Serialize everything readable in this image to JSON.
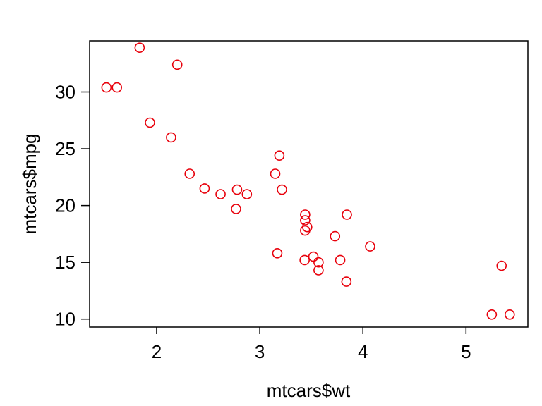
{
  "chart_data": {
    "type": "scatter",
    "title": "",
    "xlabel": "mtcars$wt",
    "ylabel": "mtcars$mpg",
    "xlim": [
      1.35,
      5.6
    ],
    "ylim": [
      9.3,
      34.5
    ],
    "xticks": [
      2,
      3,
      4,
      5
    ],
    "yticks": [
      10,
      15,
      20,
      25,
      30
    ],
    "grid": false,
    "legend": "none",
    "marker": "open-circle",
    "color": "#e8000b",
    "points": [
      {
        "x": 2.62,
        "y": 21.0
      },
      {
        "x": 2.875,
        "y": 21.0
      },
      {
        "x": 2.32,
        "y": 22.8
      },
      {
        "x": 3.215,
        "y": 21.4
      },
      {
        "x": 3.44,
        "y": 18.7
      },
      {
        "x": 3.46,
        "y": 18.1
      },
      {
        "x": 3.57,
        "y": 14.3
      },
      {
        "x": 3.19,
        "y": 24.4
      },
      {
        "x": 3.15,
        "y": 22.8
      },
      {
        "x": 3.44,
        "y": 19.2
      },
      {
        "x": 3.44,
        "y": 17.8
      },
      {
        "x": 4.07,
        "y": 16.4
      },
      {
        "x": 3.73,
        "y": 17.3
      },
      {
        "x": 3.78,
        "y": 15.2
      },
      {
        "x": 5.25,
        "y": 10.4
      },
      {
        "x": 5.424,
        "y": 10.4
      },
      {
        "x": 5.345,
        "y": 14.7
      },
      {
        "x": 2.2,
        "y": 32.4
      },
      {
        "x": 1.615,
        "y": 30.4
      },
      {
        "x": 1.835,
        "y": 33.9
      },
      {
        "x": 2.465,
        "y": 21.5
      },
      {
        "x": 3.52,
        "y": 15.5
      },
      {
        "x": 3.435,
        "y": 15.2
      },
      {
        "x": 3.84,
        "y": 13.3
      },
      {
        "x": 3.845,
        "y": 19.2
      },
      {
        "x": 1.935,
        "y": 27.3
      },
      {
        "x": 2.14,
        "y": 26.0
      },
      {
        "x": 1.513,
        "y": 30.4
      },
      {
        "x": 3.17,
        "y": 15.8
      },
      {
        "x": 2.77,
        "y": 19.7
      },
      {
        "x": 3.57,
        "y": 15.0
      },
      {
        "x": 2.78,
        "y": 21.4
      }
    ]
  }
}
